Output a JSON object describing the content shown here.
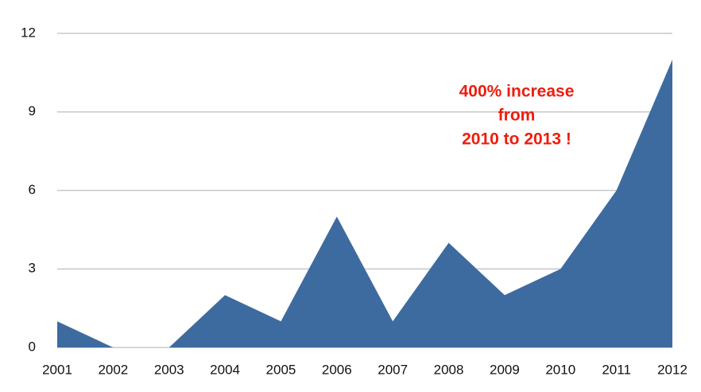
{
  "chart_data": {
    "type": "area",
    "categories": [
      "2001",
      "2002",
      "2003",
      "2004",
      "2005",
      "2006",
      "2007",
      "2008",
      "2009",
      "2010",
      "2011",
      "2012"
    ],
    "values": [
      1,
      0,
      0,
      2,
      1,
      5,
      1,
      4,
      2,
      3,
      6,
      11
    ],
    "color": "#3e6b9f",
    "ylim": [
      0,
      12
    ],
    "yticks": [
      0,
      3,
      6,
      9,
      12
    ],
    "grid": true,
    "annotation": [
      "400% increase",
      "from",
      "2010 to 2013 !"
    ],
    "annotation_color": "#ee1c0e"
  }
}
